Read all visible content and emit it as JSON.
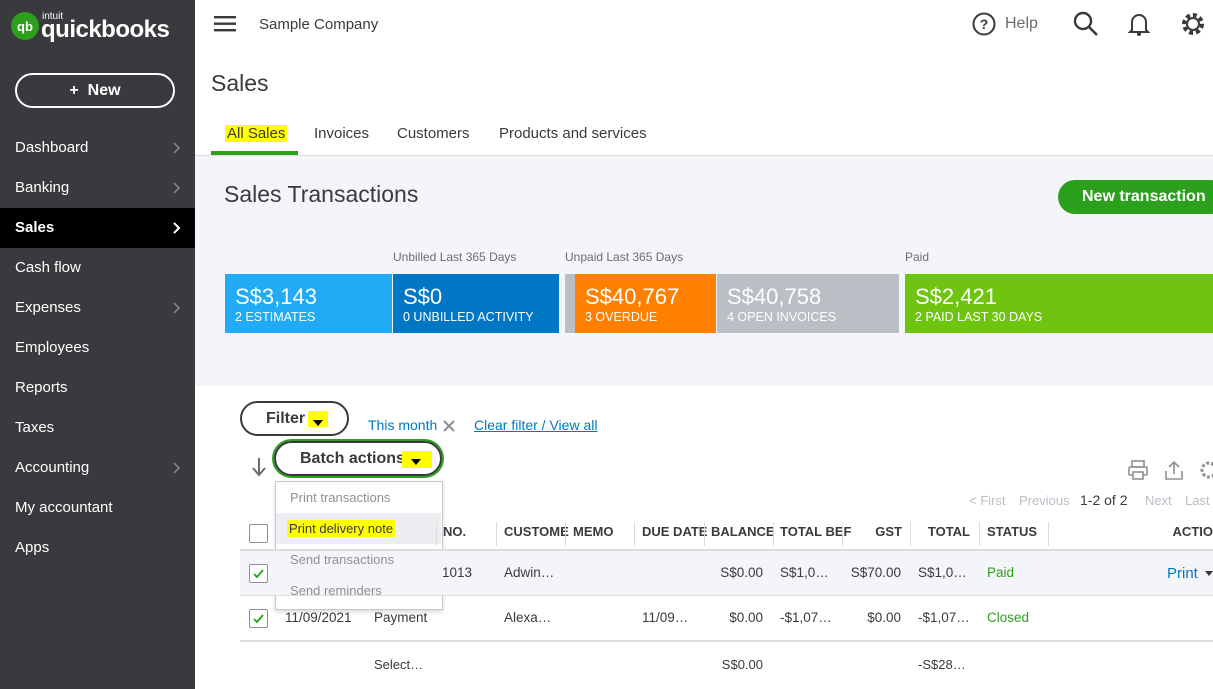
{
  "sidebar": {
    "logo_brand": "intuit",
    "logo": "quickbooks",
    "new_button": "+  New",
    "nav": [
      "Dashboard",
      "Banking",
      "Sales",
      "Cash flow",
      "Expenses",
      "Employees",
      "Reports",
      "Taxes",
      "Accounting",
      "My accountant",
      "Apps"
    ]
  },
  "topbar": {
    "company": "Sample Company",
    "help": "Help"
  },
  "page": {
    "title": "Sales",
    "tabs": [
      "All Sales",
      "Invoices",
      "Customers",
      "Products and services"
    ]
  },
  "summary": {
    "title": "Sales Transactions",
    "new_transaction": "New transaction",
    "labels": [
      "Unbilled Last 365 Days",
      "Unpaid Last 365 Days",
      "Paid"
    ],
    "tiles": [
      {
        "amount": "S$3,143",
        "caption": "2 ESTIMATES"
      },
      {
        "amount": "S$0",
        "caption": "0 UNBILLED ACTIVITY"
      },
      {
        "amount": "S$40,767",
        "caption": "3 OVERDUE"
      },
      {
        "amount": "S$40,758",
        "caption": "4 OPEN INVOICES"
      },
      {
        "amount": "S$2,421",
        "caption": "2 PAID LAST 30 DAYS"
      }
    ]
  },
  "filters": {
    "filter": "Filter",
    "chip": "This month",
    "clear": "Clear filter / View all",
    "batch": "Batch actions",
    "menu": [
      "Print transactions",
      "Print delivery note",
      "Send transactions",
      "Send reminders"
    ]
  },
  "pagination": {
    "first": "< First",
    "previous": "Previous",
    "range": "1-2 of 2",
    "next": "Next",
    "last": "Last"
  },
  "table": {
    "headers": [
      "NO.",
      "CUSTOME",
      "MEMO",
      "DUE DATE",
      "BALANCE",
      "TOTAL BEF",
      "GST",
      "TOTAL",
      "STATUS",
      "ACTIO"
    ],
    "rows": [
      [
        "1013",
        "Adwin…",
        "S$0.00",
        "S$1,0…",
        "S$70.00",
        "S$1,0…",
        "Paid",
        "Print"
      ],
      [
        "11/09/2021",
        "Payment",
        "Alexa…",
        "11/09…",
        "$0.00",
        "-$1,07…",
        "$0.00",
        "-$1,07…",
        "Closed"
      ]
    ],
    "footer": [
      "Select…",
      "S$0.00",
      "-S$28…"
    ]
  }
}
